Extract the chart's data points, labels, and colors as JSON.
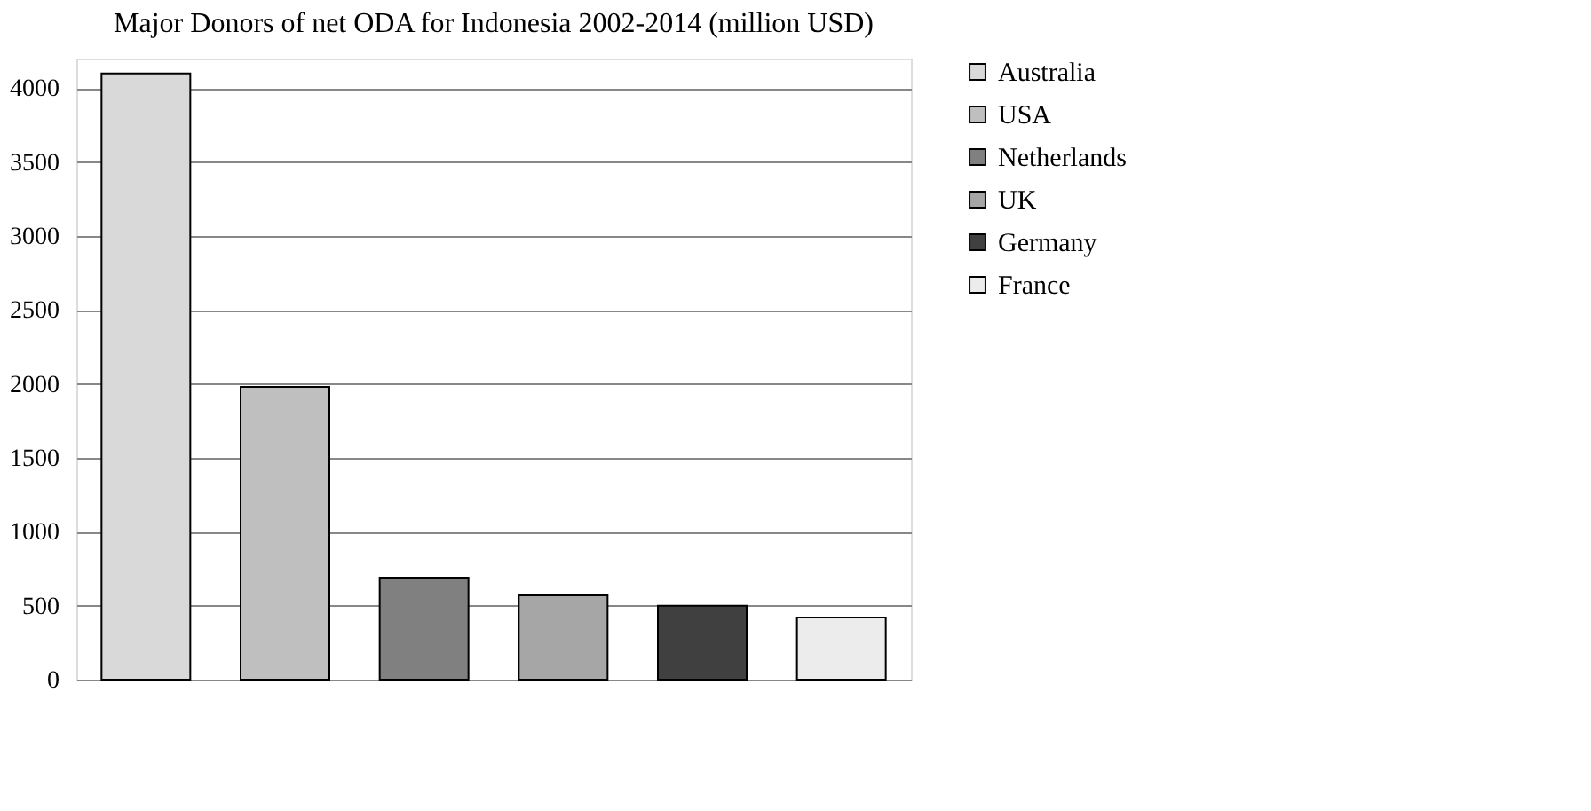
{
  "chart_data": {
    "type": "bar",
    "title": "Major Donors of net ODA for Indonesia 2002-2014 (million USD)",
    "categories": [
      null,
      null,
      null,
      null,
      null,
      null
    ],
    "series": [
      {
        "name": "Australia",
        "color": "#d9d9d9",
        "values": [
          4100,
          null,
          null,
          null,
          null,
          null
        ]
      },
      {
        "name": "USA",
        "color": "#bfbfbf",
        "values": [
          null,
          1980,
          null,
          null,
          null,
          null
        ]
      },
      {
        "name": "Netherlands",
        "color": "#808080",
        "values": [
          null,
          null,
          690,
          null,
          null,
          null
        ]
      },
      {
        "name": "UK",
        "color": "#a6a6a6",
        "values": [
          null,
          null,
          null,
          570,
          null,
          null
        ]
      },
      {
        "name": "Germany",
        "color": "#404040",
        "values": [
          null,
          null,
          null,
          null,
          500,
          null
        ]
      },
      {
        "name": "France",
        "color": "#ececec",
        "values": [
          null,
          null,
          null,
          null,
          null,
          420
        ]
      }
    ],
    "ylim": [
      0,
      4200
    ],
    "yticks": [
      0,
      500,
      1000,
      1500,
      2000,
      2500,
      3000,
      3500,
      4000
    ],
    "grid": "y",
    "legend": "right",
    "tick_labels": "y"
  }
}
